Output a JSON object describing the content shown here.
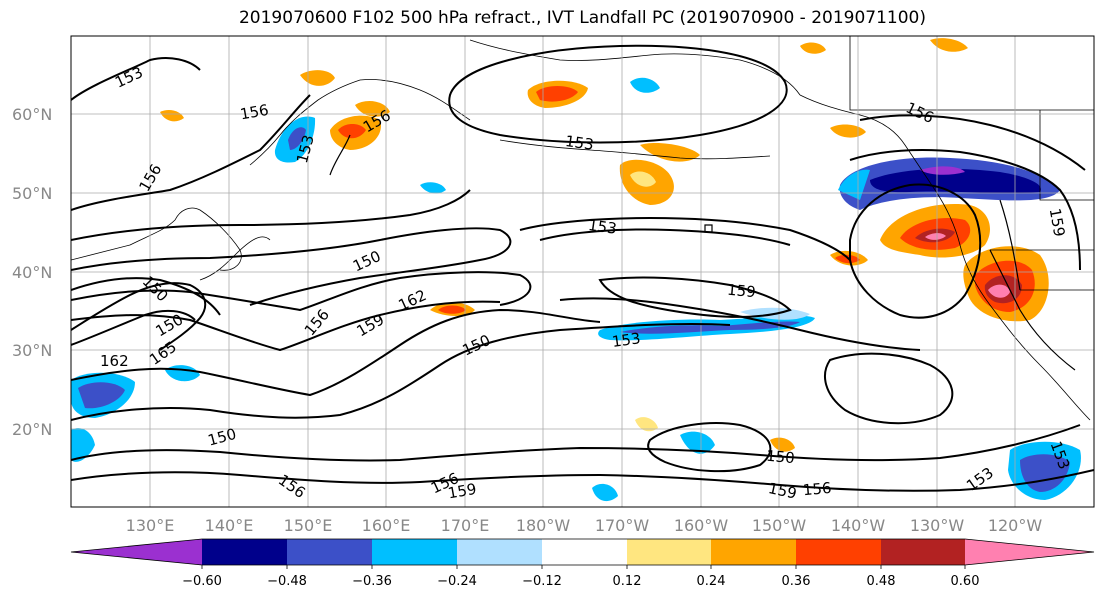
{
  "title": "2019070600 F102 500 hPa refract., IVT Landfall PC (2019070900 - 2019071100)",
  "lat_labels": [
    "60°N",
    "50°N",
    "40°N",
    "30°N",
    "20°N"
  ],
  "lon_labels": [
    "130°E",
    "140°E",
    "150°E",
    "160°E",
    "170°E",
    "180°W",
    "170°W",
    "160°W",
    "150°W",
    "140°W",
    "130°W",
    "120°W"
  ],
  "colorbar": {
    "tick_labels": [
      "−0.60",
      "−0.48",
      "−0.36",
      "−0.24",
      "−0.12",
      "0.12",
      "0.24",
      "0.36",
      "0.48",
      "0.60"
    ],
    "colors": [
      "#9b30d0",
      "#00008b",
      "#3c50c8",
      "#00bfff",
      "#b0e0ff",
      "#ffffff",
      "#ffe680",
      "#ffa500",
      "#ff4000",
      "#b22222",
      "#ff80b0"
    ]
  },
  "contour_labels": [
    "153",
    "156",
    "156",
    "153",
    "156",
    "153",
    "153",
    "150",
    "150",
    "162",
    "159",
    "156",
    "159",
    "150",
    "153",
    "150",
    "162",
    "165",
    "150",
    "156",
    "156",
    "159",
    "150",
    "159",
    "156",
    "153",
    "153",
    "159",
    "156"
  ]
}
